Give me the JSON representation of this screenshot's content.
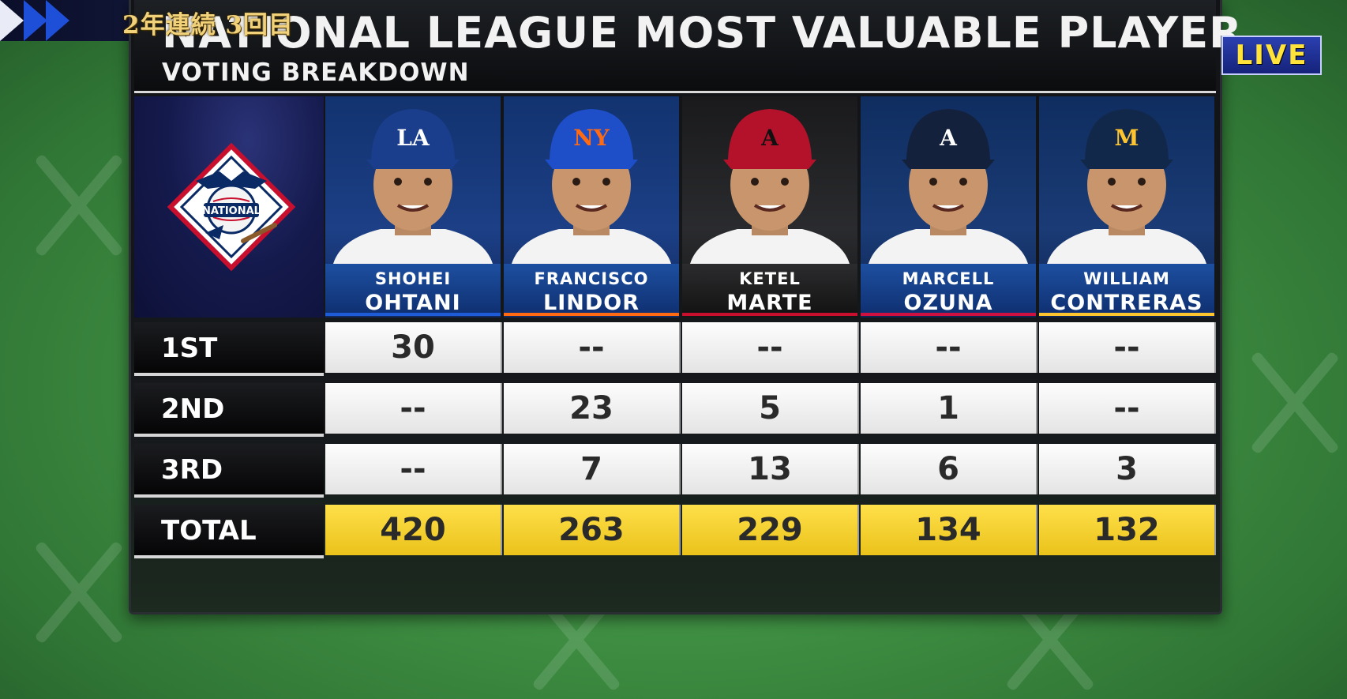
{
  "broadcast": {
    "caption_jp": "2年連続 3回目",
    "live_badge": "LIVE"
  },
  "graphic": {
    "title": "NATIONAL LEAGUE MOST VALUABLE PLAYER",
    "subtitle": "VOTING BREAKDOWN",
    "league_logo_text": "NATIONAL"
  },
  "players": [
    {
      "first": "SHOHEI",
      "last": "OHTANI",
      "team_cap": "LA",
      "cap_color": "#1a3e8c",
      "logo_color": "#ffffff",
      "stripe": "#1e5bd6"
    },
    {
      "first": "FRANCISCO",
      "last": "LINDOR",
      "team_cap": "NY",
      "cap_color": "#1e4ec8",
      "logo_color": "#ff6a13",
      "stripe": "#ff6a13"
    },
    {
      "first": "KETEL",
      "last": "MARTE",
      "team_cap": "A",
      "cap_color": "#b3122a",
      "logo_color": "#111111",
      "stripe": "#c8102e"
    },
    {
      "first": "MARCELL",
      "last": "OZUNA",
      "team_cap": "A",
      "cap_color": "#14213d",
      "logo_color": "#ffffff",
      "stripe": "#ce1141"
    },
    {
      "first": "WILLIAM",
      "last": "CONTRERAS",
      "team_cap": "M",
      "cap_color": "#12284b",
      "logo_color": "#ffc52f",
      "stripe": "#ffc52f"
    }
  ],
  "rows": [
    {
      "label": "1ST",
      "values": [
        "30",
        "--",
        "--",
        "--",
        "--"
      ]
    },
    {
      "label": "2ND",
      "values": [
        "--",
        "23",
        "5",
        "1",
        "--"
      ]
    },
    {
      "label": "3RD",
      "values": [
        "--",
        "7",
        "13",
        "6",
        "3"
      ]
    },
    {
      "label": "TOTAL",
      "values": [
        "420",
        "263",
        "229",
        "134",
        "132"
      ]
    }
  ]
}
